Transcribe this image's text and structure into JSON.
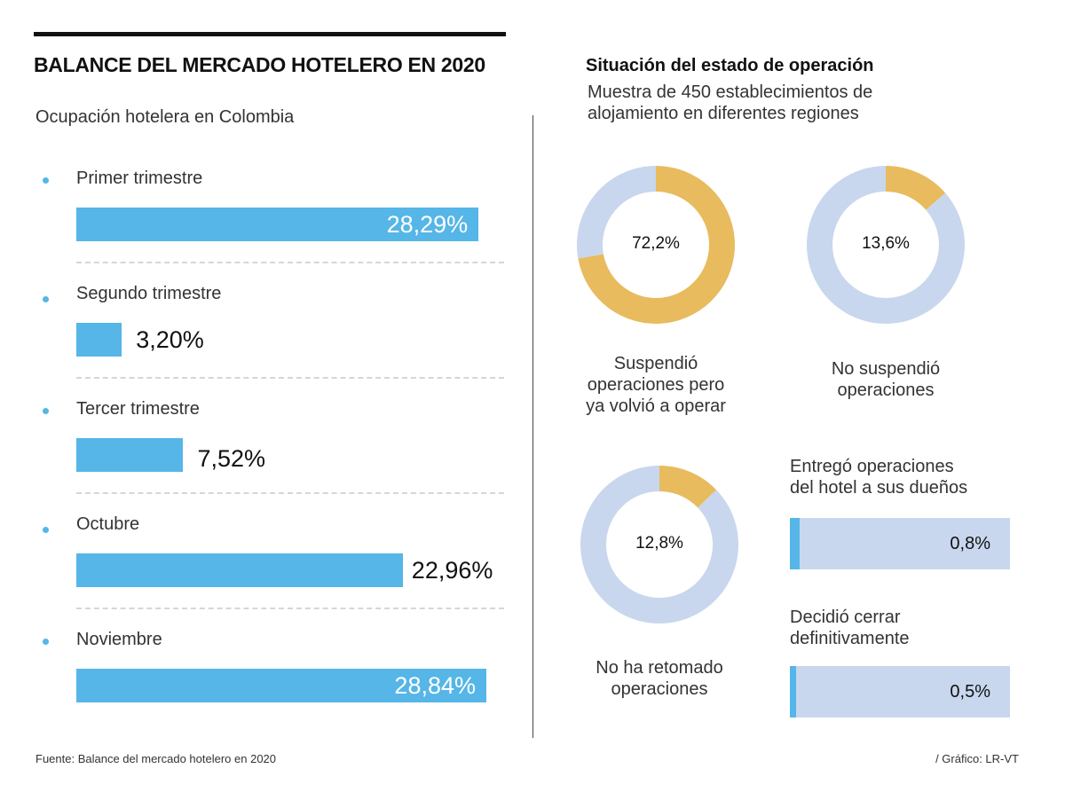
{
  "header": {
    "title": "BALANCE DEL MERCADO HOTELERO EN 2020",
    "subtitle": "Ocupación hotelera en Colombia"
  },
  "right_header": {
    "title": "Situación del estado de operación",
    "subtitle_line1": "Muestra de 450 establecimientos de",
    "subtitle_line2": "alojamiento en diferentes regiones"
  },
  "colors": {
    "bar_blue": "#55b6e7",
    "donut_gold": "#e8bb5e",
    "donut_light": "#c8d7ee"
  },
  "chart_data": [
    {
      "type": "bar",
      "orientation": "horizontal",
      "title": "Ocupación hotelera en Colombia",
      "categories": [
        "Primer trimestre",
        "Segundo trimestre",
        "Tercer trimestre",
        "Octubre",
        "Noviembre"
      ],
      "values": [
        28.29,
        3.2,
        7.52,
        22.96,
        28.84
      ],
      "labels": [
        "28,29%",
        "3,20%",
        "7,52%",
        "22,96%",
        "28,84%"
      ],
      "unit": "%",
      "xlim": [
        0,
        30
      ]
    },
    {
      "type": "pie",
      "subtype": "donut",
      "title": "Situación del estado de operación",
      "items": [
        {
          "label_line1": "Suspendió",
          "label_line2": "operaciones pero",
          "label_line3": "ya volvió a operar",
          "value": 72.2,
          "display": "72,2%"
        },
        {
          "label_line1": "No suspendió",
          "label_line2": "operaciones",
          "label_line3": "",
          "value": 13.6,
          "display": "13,6%"
        },
        {
          "label_line1": "No ha retomado",
          "label_line2": "operaciones",
          "label_line3": "",
          "value": 12.8,
          "display": "12,8%"
        }
      ]
    },
    {
      "type": "bar",
      "orientation": "horizontal",
      "subtype": "progress",
      "items": [
        {
          "label_line1": "Entregó operaciones",
          "label_line2": "del hotel a sus dueños",
          "value": 0.8,
          "display": "0,8%"
        },
        {
          "label_line1": "Decidió cerrar",
          "label_line2": "definitivamente",
          "value": 0.5,
          "display": "0,5%"
        }
      ],
      "xlim": [
        0,
        100
      ]
    }
  ],
  "footer": {
    "source": "Fuente: Balance del mercado hotelero en 2020",
    "credit": "/ Gráfico: LR-VT"
  }
}
